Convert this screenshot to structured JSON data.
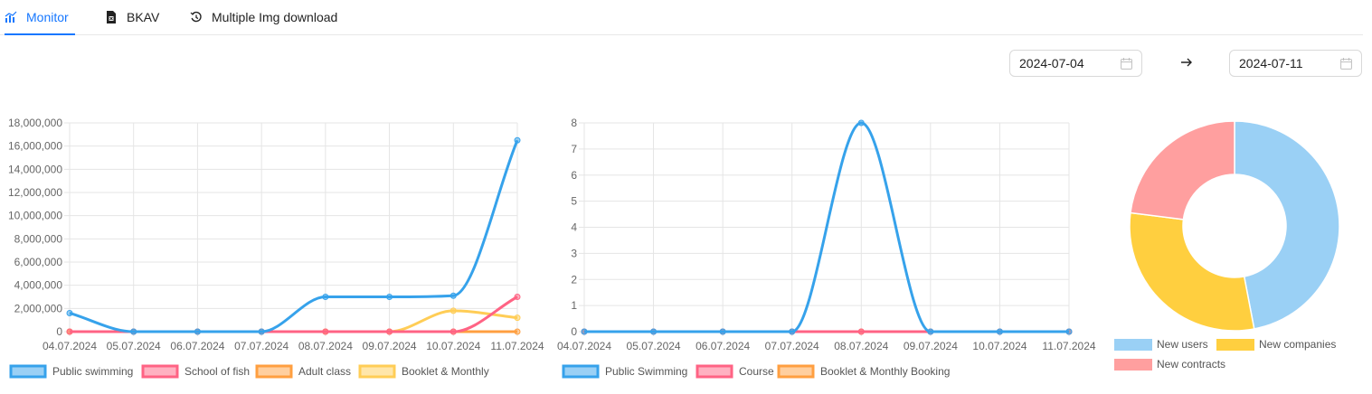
{
  "tabs": [
    {
      "label": "Monitor",
      "icon": "bar-chart-icon",
      "active": true
    },
    {
      "label": "BKAV",
      "icon": "file-excel-icon",
      "active": false
    },
    {
      "label": "Multiple Img download",
      "icon": "history-icon",
      "active": false
    }
  ],
  "date_range": {
    "start": "2024-07-04",
    "end": "2024-07-11",
    "separator_icon": "arrow-right-icon",
    "calendar_icon": "calendar-icon"
  },
  "colors": {
    "blue": "#36a2eb",
    "red": "#ff6384",
    "orange": "#ff9f40",
    "yellow": "#ffcd56",
    "accent": "#1677ff"
  },
  "chart_data": [
    {
      "type": "line",
      "categories": [
        "04.07.2024",
        "05.07.2024",
        "06.07.2024",
        "07.07.2024",
        "08.07.2024",
        "09.07.2024",
        "10.07.2024",
        "11.07.2024"
      ],
      "ylim": [
        0,
        18000000
      ],
      "yticks": [
        "0",
        "2,000,000",
        "4,000,000",
        "6,000,000",
        "8,000,000",
        "10,000,000",
        "12,000,000",
        "14,000,000",
        "16,000,000",
        "18,000,000"
      ],
      "grid": true,
      "legend": "bottom-left",
      "series": [
        {
          "name": "Public swimming",
          "color": "#36a2eb",
          "values": [
            1600000,
            0,
            0,
            0,
            3000000,
            3000000,
            3100000,
            16500000
          ]
        },
        {
          "name": "School of fish",
          "color": "#ff6384",
          "values": [
            0,
            0,
            0,
            0,
            0,
            0,
            0,
            3000000
          ]
        },
        {
          "name": "Adult class",
          "color": "#ff9f40",
          "values": [
            0,
            0,
            0,
            0,
            0,
            0,
            0,
            0
          ]
        },
        {
          "name": "Booklet & Monthly",
          "color": "#ffcd56",
          "values": [
            0,
            0,
            0,
            0,
            0,
            0,
            1800000,
            1200000
          ]
        }
      ]
    },
    {
      "type": "line",
      "categories": [
        "04.07.2024",
        "05.07.2024",
        "06.07.2024",
        "07.07.2024",
        "08.07.2024",
        "09.07.2024",
        "10.07.2024",
        "11.07.2024"
      ],
      "ylim": [
        0,
        8
      ],
      "yticks": [
        "0",
        "1",
        "2",
        "3",
        "4",
        "5",
        "6",
        "7",
        "8"
      ],
      "grid": true,
      "legend": "bottom-left",
      "series": [
        {
          "name": "Public Swimming",
          "color": "#36a2eb",
          "values": [
            0,
            0,
            0,
            0,
            8,
            0,
            0,
            0
          ]
        },
        {
          "name": "Course",
          "color": "#ff6384",
          "values": [
            0,
            0,
            0,
            0,
            0,
            0,
            0,
            0
          ]
        },
        {
          "name": "Booklet & Monthly Booking",
          "color": "#ff9f40",
          "values": [
            0,
            0,
            0,
            0,
            0,
            0,
            0,
            0
          ]
        }
      ]
    },
    {
      "type": "pie",
      "donut": true,
      "legend": "bottom",
      "slices": [
        {
          "name": "New users",
          "value": 47,
          "color": "#9ad0f5"
        },
        {
          "name": "New companies",
          "value": 30,
          "color": "#ffcf3f"
        },
        {
          "name": "New contracts",
          "value": 23,
          "color": "#ff9f9f"
        }
      ]
    }
  ]
}
